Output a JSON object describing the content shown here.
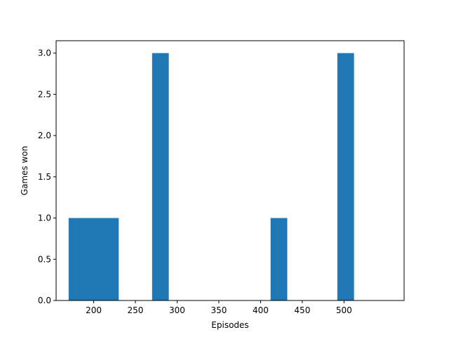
{
  "chart_data": {
    "type": "bar",
    "title": "",
    "xlabel": "Episodes",
    "ylabel": "Games won",
    "xlim": [
      155,
      572
    ],
    "ylim": [
      0,
      3.15
    ],
    "xticks": [
      200,
      250,
      300,
      350,
      400,
      450,
      500
    ],
    "yticks": [
      0.0,
      0.5,
      1.0,
      1.5,
      2.0,
      2.5,
      3.0
    ],
    "ytick_labels": [
      "0.0",
      "0.5",
      "1.0",
      "1.5",
      "2.0",
      "2.5",
      "3.0"
    ],
    "bars": [
      {
        "x_start": 170,
        "x_end": 230,
        "value": 1
      },
      {
        "x_start": 270,
        "x_end": 290,
        "value": 3
      },
      {
        "x_start": 412,
        "x_end": 432,
        "value": 1
      },
      {
        "x_start": 492,
        "x_end": 512,
        "value": 3
      }
    ],
    "bar_color": "#1f77b4",
    "grid": false,
    "legend": false
  }
}
